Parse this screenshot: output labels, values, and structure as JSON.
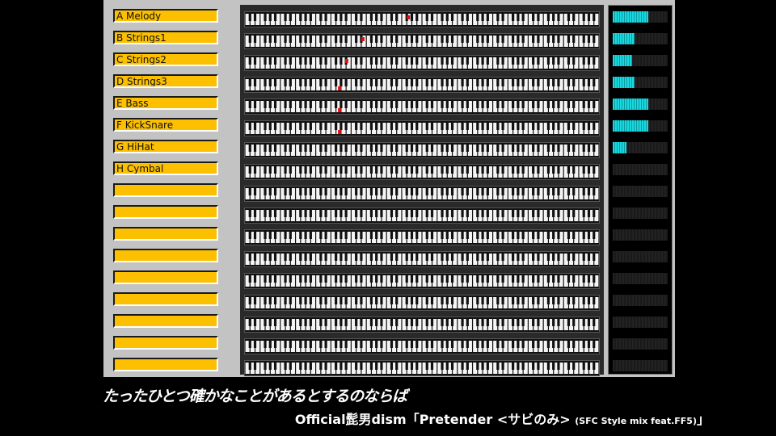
{
  "tracks": [
    {
      "label": "A Melody",
      "level": 0.65,
      "active_key": 32
    },
    {
      "label": "B Strings1",
      "level": 0.4,
      "active_key": 23
    },
    {
      "label": "C Strings2",
      "level": 0.35,
      "active_key": 19.8
    },
    {
      "label": "D Strings3",
      "level": 0.4,
      "active_key": 18.4
    },
    {
      "label": "E Bass",
      "level": 0.65,
      "active_key": 18.4
    },
    {
      "label": "F KickSnare",
      "level": 0.65,
      "active_key": 18.4
    },
    {
      "label": "G HiHat",
      "level": 0.25,
      "active_key": null
    },
    {
      "label": "H Cymbal",
      "level": 0,
      "active_key": null
    },
    {
      "label": "",
      "level": 0,
      "active_key": null
    },
    {
      "label": "",
      "level": 0,
      "active_key": null
    },
    {
      "label": "",
      "level": 0,
      "active_key": null
    },
    {
      "label": "",
      "level": 0,
      "active_key": null
    },
    {
      "label": "",
      "level": 0,
      "active_key": null
    },
    {
      "label": "",
      "level": 0,
      "active_key": null
    },
    {
      "label": "",
      "level": 0,
      "active_key": null
    },
    {
      "label": "",
      "level": 0,
      "active_key": null
    },
    {
      "label": "",
      "level": 0,
      "active_key": null
    }
  ],
  "colors": {
    "label_bg": "#fcc000",
    "meter": "#1ad8e0",
    "note": "#e01010",
    "panel": "#c3c3c3"
  },
  "caption": {
    "lyric": "たったひとつ確かなことがあるとするのならば",
    "song_main": "Official髭男dism「Pretender <サビのみ>",
    "song_sub": "(SFC Style mix feat.FF5)",
    "song_end": "」"
  }
}
